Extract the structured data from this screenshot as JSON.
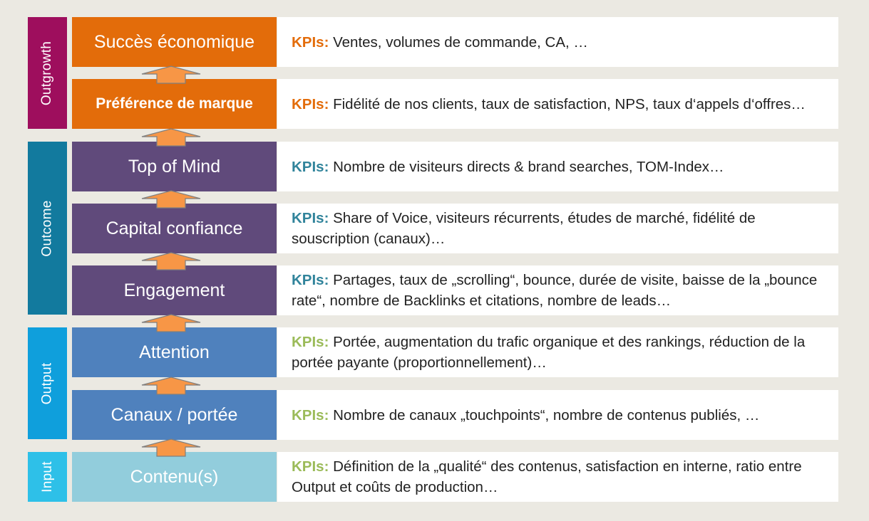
{
  "colors": {
    "background": "#ebe9e2",
    "arrow_fill": "#f79646",
    "arrow_stroke": "#7f7f7f"
  },
  "groups": [
    {
      "label": "Outgrowth",
      "color": "#9e0e5d"
    },
    {
      "label": "Outcome",
      "color": "#127a9e"
    },
    {
      "label": "Output",
      "color": "#0f9fdc"
    },
    {
      "label": "Input",
      "color": "#2ec0e8"
    }
  ],
  "stages": [
    {
      "label": "Succès économique",
      "color": "#e36c0a",
      "kpi_prefix": "KPIs:",
      "kpi_color": "#e36c0a",
      "kpi_text": "Ventes, volumes de commande, CA, …"
    },
    {
      "label": "Préférence de marque",
      "color": "#e36c0a",
      "kpi_prefix": "KPIs:",
      "kpi_color": "#e36c0a",
      "kpi_text": "Fidélité de nos clients, taux de satisfaction, NPS, taux d‘appels d‘offres…"
    },
    {
      "label": "Top of Mind",
      "color": "#604a7b",
      "kpi_prefix": "KPIs:",
      "kpi_color": "#31849b",
      "kpi_text": "Nombre de visiteurs directs & brand searches, TOM-Index…"
    },
    {
      "label": "Capital confiance",
      "color": "#604a7b",
      "kpi_prefix": "KPIs:",
      "kpi_color": "#31849b",
      "kpi_text": "Share of Voice, visiteurs récurrents, études de marché, fidélité de souscription (canaux)…"
    },
    {
      "label": "Engagement",
      "color": "#604a7b",
      "kpi_prefix": "KPIs:",
      "kpi_color": "#31849b",
      "kpi_text": "Partages, taux de „scrolling“, bounce, durée de visite, baisse de la „bounce rate“, nombre de Backlinks et citations, nombre de leads…"
    },
    {
      "label": "Attention",
      "color": "#4f81bd",
      "kpi_prefix": "KPIs:",
      "kpi_color": "#9bbb59",
      "kpi_text": "Portée, augmentation du trafic organique et des rankings, réduction de la portée payante (proportionnellement)…"
    },
    {
      "label": "Canaux / portée",
      "color": "#4f81bd",
      "kpi_prefix": "KPIs:",
      "kpi_color": "#9bbb59",
      "kpi_text": "Nombre de canaux „touchpoints“, nombre de contenus publiés, …"
    },
    {
      "label": "Contenu(s)",
      "color": "#92cddc",
      "kpi_prefix": "KPIs:",
      "kpi_color": "#9bbb59",
      "kpi_text": "Définition de la „qualité“ des contenus, satisfaction en interne, ratio entre Output et coûts de production…"
    }
  ]
}
